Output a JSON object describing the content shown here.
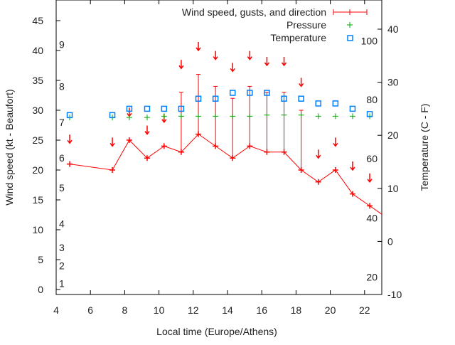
{
  "chart_data": {
    "type": "line",
    "xlabel": "Local time (Europe/Athens)",
    "ylabel": "Wind speed (kt - Beaufort)",
    "y2label": "Temperature (C - F)",
    "xlim": [
      4,
      23
    ],
    "ylim": [
      -1,
      49
    ],
    "y2lim": [
      -10,
      45
    ],
    "xticks": [
      4,
      6,
      8,
      10,
      12,
      14,
      16,
      18,
      20,
      22
    ],
    "yticks": [
      0,
      5,
      10,
      15,
      20,
      25,
      30,
      35,
      40,
      45
    ],
    "y2ticks": [
      -10,
      0,
      10,
      20,
      30,
      40
    ],
    "beaufort_labels": [
      {
        "t": "1",
        "y": 1
      },
      {
        "t": "2",
        "y": 4
      },
      {
        "t": "3",
        "y": 7
      },
      {
        "t": "4",
        "y": 11
      },
      {
        "t": "5",
        "y": 17
      },
      {
        "t": "6",
        "y": 22
      },
      {
        "t": "7",
        "y": 28
      },
      {
        "t": "8",
        "y": 34
      },
      {
        "t": "9",
        "y": 41
      }
    ],
    "fahrenheit_labels": [
      {
        "t": "20",
        "c": -6.7
      },
      {
        "t": "40",
        "c": 4.4
      },
      {
        "t": "60",
        "c": 15.6
      },
      {
        "t": "80",
        "c": 26.7
      },
      {
        "t": "100",
        "c": 37.8
      }
    ],
    "legend": [
      "Wind speed, gusts, and direction",
      "Pressure",
      "Temperature"
    ],
    "legend_position": "top-right",
    "colors": {
      "wind": "#ff0000",
      "pressure": "#00aa00",
      "temperature": "#0080ff"
    },
    "x": [
      4.79,
      7.28,
      8.27,
      9.31,
      10.3,
      11.3,
      12.3,
      13.3,
      14.3,
      15.3,
      16.3,
      17.3,
      18.3,
      19.3,
      20.3,
      21.3,
      22.3
    ],
    "series": [
      {
        "name": "Wind speed",
        "values": [
          21,
          20,
          25,
          22,
          24,
          23,
          26,
          24,
          22,
          24,
          23,
          23,
          20,
          18,
          20,
          16,
          14
        ]
      },
      {
        "name": "Gusts",
        "values": [
          null,
          null,
          null,
          null,
          null,
          33,
          36,
          34,
          32,
          34,
          33,
          33,
          30,
          null,
          null,
          null,
          null
        ]
      },
      {
        "name": "Direction arrow level",
        "values": [
          24.5,
          24,
          29,
          26,
          28,
          37,
          40,
          38.5,
          36.5,
          38.5,
          37.5,
          37.5,
          34,
          22,
          24,
          20,
          18
        ]
      },
      {
        "name": "Pressure",
        "values": [
          28.8,
          28.8,
          28.8,
          28.8,
          29,
          29,
          29,
          29,
          29,
          29,
          29.2,
          29.2,
          29.2,
          29,
          29,
          29,
          29
        ]
      },
      {
        "name": "Temperature",
        "values": [
          23.8,
          23.8,
          25,
          25,
          25,
          25,
          26.9,
          26.9,
          28,
          28,
          28,
          26.9,
          26.9,
          26,
          26,
          25,
          24
        ]
      }
    ]
  }
}
